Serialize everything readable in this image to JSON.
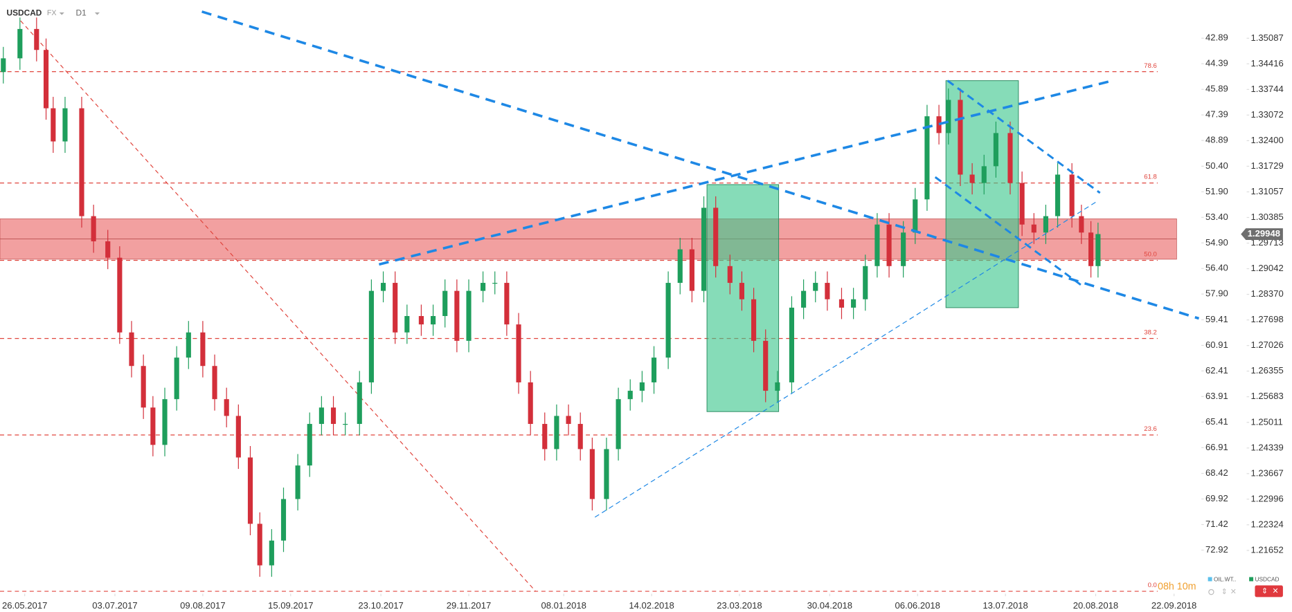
{
  "chart_data": {
    "type": "candlestick",
    "symbol": "USDCAD",
    "market": "FX",
    "interval": "D1",
    "x": [
      -9,
      -2,
      5,
      9,
      12,
      17,
      24,
      29,
      35,
      40,
      45,
      50,
      54,
      59,
      64,
      69,
      75,
      80,
      85,
      90,
      95,
      99,
      104,
      109,
      115,
      120,
      125,
      130,
      135,
      141,
      146,
      151,
      156,
      161,
      167,
      172,
      177,
      182,
      187,
      193,
      198,
      203,
      208,
      213,
      219,
      224,
      229,
      234,
      239,
      245,
      250,
      255,
      260,
      265,
      271,
      276,
      281,
      286,
      291,
      297,
      302,
      307,
      312,
      317,
      323,
      328,
      333,
      338,
      344,
      349,
      354,
      359,
      364,
      370,
      375,
      380,
      385,
      389,
      394,
      399,
      404,
      409,
      415,
      420,
      425,
      430,
      435,
      441,
      445,
      449,
      452
    ],
    "open": [
      1.342,
      1.3456,
      1.3533,
      1.3478,
      1.3325,
      1.3238,
      1.3325,
      1.3042,
      1.2976,
      1.2933,
      1.2737,
      1.2649,
      1.254,
      1.2442,
      1.2562,
      1.2671,
      1.2737,
      1.2649,
      1.2562,
      1.2518,
      1.2409,
      1.2235,
      1.2126,
      1.2191,
      1.23,
      1.2388,
      1.2497,
      1.254,
      1.2497,
      1.2497,
      1.2606,
      1.2846,
      1.2867,
      1.2737,
      1.278,
      1.2758,
      1.278,
      1.2846,
      1.2715,
      1.2846,
      1.2867,
      1.2867,
      1.2758,
      1.2606,
      1.2497,
      1.2431,
      1.2518,
      1.2497,
      1.2431,
      1.23,
      1.2431,
      1.2562,
      1.2584,
      1.2606,
      1.2671,
      1.2867,
      1.2955,
      1.2846,
      1.3064,
      1.2911,
      1.2867,
      1.2824,
      1.2715,
      1.2584,
      1.2606,
      1.2802,
      1.2846,
      1.2867,
      1.2824,
      1.2802,
      1.2824,
      1.2911,
      1.302,
      1.2911,
      1.2999,
      1.3086,
      1.3304,
      1.326,
      1.3347,
      1.3151,
      1.3129,
      1.3173,
      1.326,
      1.3129,
      1.302,
      1.2999,
      1.3042,
      1.3151,
      1.3042,
      1.2999,
      1.2911
    ],
    "high": [
      1.3486,
      1.3563,
      1.3563,
      1.3508,
      1.3355,
      1.3355,
      1.3355,
      1.3072,
      1.3006,
      1.2963,
      1.2767,
      1.2679,
      1.257,
      1.2592,
      1.2701,
      1.2767,
      1.2767,
      1.2679,
      1.2592,
      1.2548,
      1.2439,
      1.2265,
      1.2221,
      1.233,
      1.2418,
      1.2527,
      1.257,
      1.257,
      1.2527,
      1.2636,
      1.2876,
      1.2897,
      1.2897,
      1.281,
      1.281,
      1.281,
      1.2876,
      1.2876,
      1.2876,
      1.2897,
      1.2897,
      1.2897,
      1.2788,
      1.2636,
      1.2527,
      1.2548,
      1.2548,
      1.2527,
      1.2461,
      1.2461,
      1.2592,
      1.2614,
      1.2636,
      1.2701,
      1.2897,
      1.2985,
      1.2985,
      1.3094,
      1.3094,
      1.2941,
      1.2897,
      1.2854,
      1.2745,
      1.2636,
      1.2832,
      1.2876,
      1.2897,
      1.2897,
      1.2854,
      1.2854,
      1.2941,
      1.305,
      1.305,
      1.3029,
      1.3116,
      1.3334,
      1.3334,
      1.3377,
      1.3377,
      1.3181,
      1.3203,
      1.329,
      1.329,
      1.3159,
      1.305,
      1.3072,
      1.3181,
      1.3181,
      1.3072,
      1.3029,
      1.3025
    ],
    "low": [
      1.339,
      1.3426,
      1.3448,
      1.3295,
      1.3208,
      1.3208,
      1.3012,
      1.2946,
      1.2903,
      1.2707,
      1.2619,
      1.251,
      1.2412,
      1.2412,
      1.2532,
      1.2641,
      1.2619,
      1.2532,
      1.2488,
      1.2379,
      1.2205,
      1.2096,
      1.2096,
      1.2161,
      1.227,
      1.2358,
      1.2467,
      1.2467,
      1.2467,
      1.2467,
      1.2576,
      1.2816,
      1.2707,
      1.2707,
      1.2728,
      1.2728,
      1.275,
      1.2685,
      1.2685,
      1.2816,
      1.2837,
      1.2728,
      1.2576,
      1.2467,
      1.2401,
      1.2401,
      1.2467,
      1.2401,
      1.227,
      1.227,
      1.2401,
      1.2532,
      1.2554,
      1.2576,
      1.2641,
      1.2837,
      1.2816,
      1.2816,
      1.2881,
      1.2837,
      1.2794,
      1.2685,
      1.2554,
      1.2554,
      1.2576,
      1.2772,
      1.2816,
      1.2794,
      1.2772,
      1.2772,
      1.2794,
      1.2881,
      1.2881,
      1.2881,
      1.2969,
      1.3056,
      1.323,
      1.323,
      1.3121,
      1.3099,
      1.3099,
      1.3143,
      1.3099,
      1.299,
      1.2969,
      1.2969,
      1.3012,
      1.3012,
      1.2969,
      1.2881,
      1.2881
    ],
    "close": [
      1.3456,
      1.3533,
      1.3478,
      1.3325,
      1.3238,
      1.3325,
      1.3042,
      1.2976,
      1.2933,
      1.2737,
      1.2649,
      1.254,
      1.2442,
      1.2562,
      1.2671,
      1.2737,
      1.2649,
      1.2562,
      1.2518,
      1.2409,
      1.2235,
      1.2126,
      1.2191,
      1.23,
      1.2388,
      1.2497,
      1.254,
      1.2497,
      1.2497,
      1.2606,
      1.2846,
      1.2867,
      1.2737,
      1.278,
      1.2758,
      1.278,
      1.2846,
      1.2715,
      1.2846,
      1.2867,
      1.2867,
      1.2758,
      1.2606,
      1.2497,
      1.2431,
      1.2518,
      1.2497,
      1.2431,
      1.23,
      1.2431,
      1.2562,
      1.2584,
      1.2606,
      1.2671,
      1.2867,
      1.2955,
      1.2846,
      1.3064,
      1.2911,
      1.2867,
      1.2824,
      1.2715,
      1.2584,
      1.2606,
      1.2802,
      1.2846,
      1.2867,
      1.2824,
      1.2802,
      1.2824,
      1.2911,
      1.302,
      1.2911,
      1.2999,
      1.3086,
      1.3304,
      1.326,
      1.3347,
      1.3151,
      1.3129,
      1.3173,
      1.326,
      1.3129,
      1.302,
      1.2999,
      1.3042,
      1.3151,
      1.3042,
      1.2999,
      1.2911,
      1.2995
    ],
    "up_color": "#1e9e5c",
    "down_color": "#d32f3a",
    "xlim": [
      -10.4,
      491
    ],
    "xticks": [
      {
        "value": 0,
        "label": "26.05.2017"
      },
      {
        "value": 38,
        "label": "03.07.2017"
      },
      {
        "value": 75,
        "label": "09.08.2017"
      },
      {
        "value": 112,
        "label": "15.09.2017"
      },
      {
        "value": 150,
        "label": "23.10.2017"
      },
      {
        "value": 187,
        "label": "29.11.2017"
      },
      {
        "value": 227,
        "label": "08.01.2018"
      },
      {
        "value": 264,
        "label": "14.02.2018"
      },
      {
        "value": 301,
        "label": "23.03.2018"
      },
      {
        "value": 339,
        "label": "30.04.2018"
      },
      {
        "value": 376,
        "label": "06.06.2018"
      },
      {
        "value": 413,
        "label": "13.07.2018"
      },
      {
        "value": 451,
        "label": "20.08.2018"
      },
      {
        "value": 484,
        "label": "22.09.2018"
      }
    ],
    "ylim": [
      1.2056,
      1.3609
    ],
    "yticks": [
      1.35087,
      1.34416,
      1.33744,
      1.33072,
      {
        "value": 1.324,
        "label": "1.32400"
      },
      1.31729,
      1.31057,
      1.30385,
      1.29713,
      1.29042,
      {
        "value": 1.2837,
        "label": "1.28370"
      },
      1.27698,
      1.27026,
      1.26355,
      1.25683,
      1.25011,
      1.24339,
      1.23667,
      1.22996,
      1.22324,
      1.21652
    ],
    "y2lim": [
      75.38,
      40.65
    ],
    "y2ticks": [
      42.89,
      44.39,
      45.89,
      47.39,
      48.89,
      {
        "value": 50.4,
        "label": "50.40"
      },
      {
        "value": 51.9,
        "label": "51.90"
      },
      {
        "value": 53.4,
        "label": "53.40"
      },
      {
        "value": 54.9,
        "label": "54.90"
      },
      {
        "value": 56.4,
        "label": "56.40"
      },
      {
        "value": 57.9,
        "label": "57.90"
      },
      59.41,
      60.91,
      62.41,
      63.91,
      65.41,
      66.91,
      68.42,
      69.92,
      71.42,
      72.92
    ],
    "last_price": 1.29948,
    "zone": [
      1.2929,
      1.3035
    ],
    "fib_levels": [
      "78.6",
      "61.8",
      "50.0",
      "38.2",
      "23.6",
      "0.0"
    ],
    "fib_prices": [
      1.3421,
      1.3129,
      1.2926,
      1.2721,
      1.2468,
      1.2058
    ],
    "fib_color": "#e0443c",
    "legend": [
      {
        "name": "OIL.WT..",
        "color": "#5bc0eb"
      },
      {
        "name": "USDCAD",
        "color": "#1e9e5c"
      }
    ],
    "timer": "08h 10m"
  }
}
